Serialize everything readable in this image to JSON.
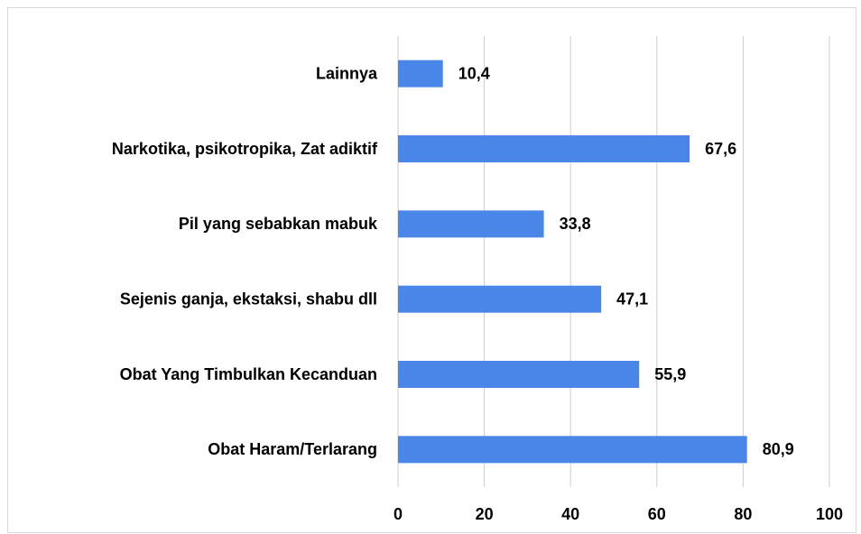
{
  "chart_data": {
    "type": "bar",
    "orientation": "horizontal",
    "categories": [
      "Lainnya",
      "Narkotika, psikotropika, Zat adiktif",
      "Pil yang sebabkan mabuk",
      "Sejenis ganja, ekstaksi, shabu dll",
      "Obat Yang Timbulkan Kecanduan",
      "Obat Haram/Terlarang"
    ],
    "values": [
      10.4,
      67.6,
      33.8,
      47.1,
      55.9,
      80.9
    ],
    "value_labels": [
      "10,4",
      "67,6",
      "33,8",
      "47,1",
      "55,9",
      "80,9"
    ],
    "color": "#4a86e8",
    "xlim": [
      0,
      100
    ],
    "xticks": [
      0,
      20,
      40,
      60,
      80,
      100
    ],
    "grid": true
  }
}
